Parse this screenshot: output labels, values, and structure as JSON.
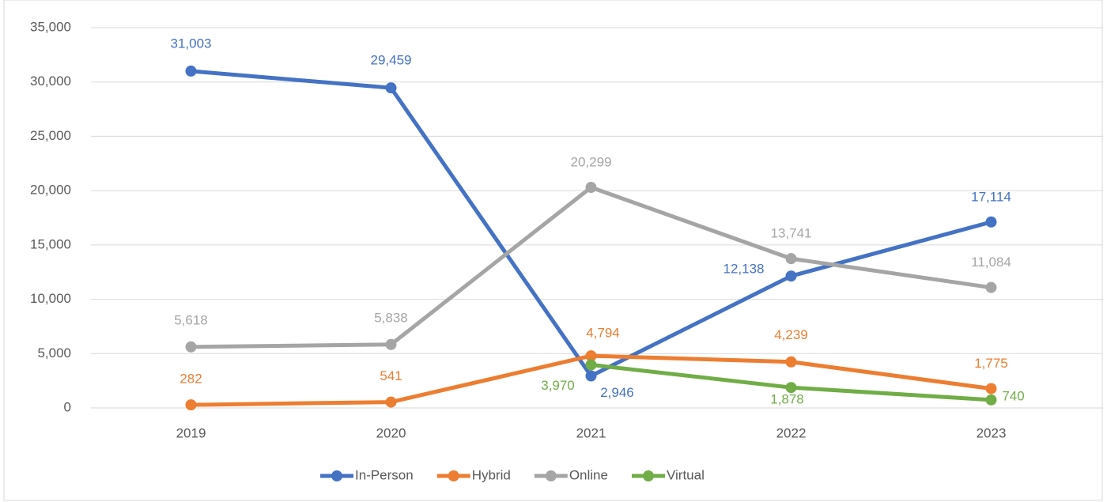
{
  "chart_data": {
    "type": "line",
    "categories": [
      "2019",
      "2020",
      "2021",
      "2022",
      "2023"
    ],
    "series": [
      {
        "name": "In-Person",
        "color": "#4472c4",
        "values": [
          31003,
          29459,
          2946,
          12138,
          17114
        ],
        "value_labels": [
          "31,003",
          "29,459",
          "2,946",
          "12,138",
          "17,114"
        ]
      },
      {
        "name": "Hybrid",
        "color": "#ed7d31",
        "values": [
          282,
          541,
          4794,
          4239,
          1775
        ],
        "value_labels": [
          "282",
          "541",
          "4,794",
          "4,239",
          "1,775"
        ]
      },
      {
        "name": "Online",
        "color": "#a5a5a5",
        "values": [
          5618,
          5838,
          20299,
          13741,
          11084
        ],
        "value_labels": [
          "5,618",
          "5,838",
          "20,299",
          "13,741",
          "11,084"
        ]
      },
      {
        "name": "Virtual",
        "color": "#70ad47",
        "values": [
          null,
          null,
          3970,
          1878,
          740
        ],
        "value_labels": [
          null,
          null,
          "3,970",
          "1,878",
          "740"
        ]
      }
    ],
    "ylim": [
      0,
      35000
    ],
    "yticks": [
      0,
      {
        "value": 5000,
        "label": "5,000"
      },
      {
        "value": 10000,
        "label": "10,000"
      },
      {
        "value": 15000,
        "label": "15,000"
      },
      {
        "value": 20000,
        "label": "20,000"
      },
      {
        "value": 25000,
        "label": "25,000"
      },
      {
        "value": 30000,
        "label": "30,000"
      },
      {
        "value": 35000,
        "label": "35,000"
      }
    ],
    "grid": true,
    "legend": "bottom"
  }
}
